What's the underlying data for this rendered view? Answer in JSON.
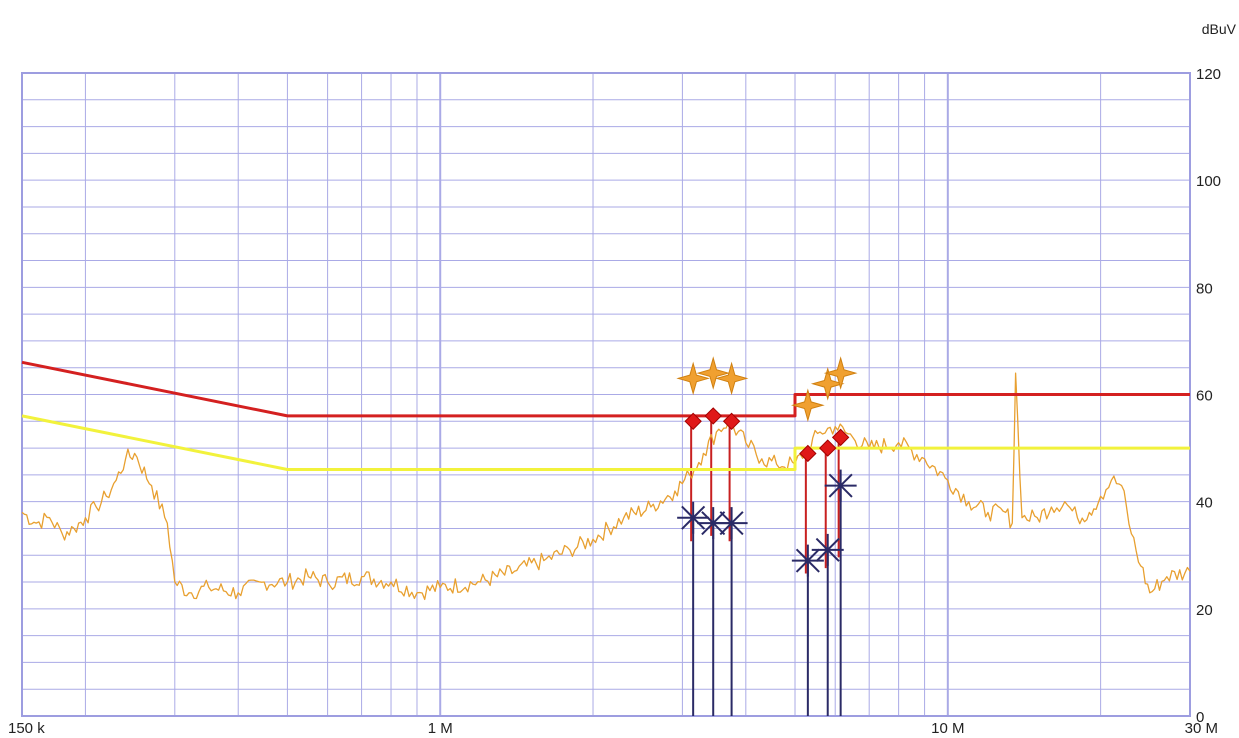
{
  "chart_data": {
    "type": "line",
    "title": "",
    "xlabel": "",
    "ylabel": "",
    "y_unit": "dBuV",
    "x_scale": "log",
    "xlim_hz": [
      150000,
      30000000
    ],
    "ylim": [
      0,
      120
    ],
    "grid": true,
    "x_tick_labels": [
      {
        "hz": 150000,
        "label": "150 k"
      },
      {
        "hz": 1000000,
        "label": "1 M"
      },
      {
        "hz": 10000000,
        "label": "10 M"
      },
      {
        "hz": 30000000,
        "label": "30 M"
      }
    ],
    "y_ticks": [
      0,
      20,
      40,
      60,
      80,
      100,
      120
    ],
    "series": [
      {
        "role": "quasi-peak limit",
        "color": "#d42020",
        "x": [
          150000,
          500000,
          500000,
          5000000,
          5000000,
          30000000
        ],
        "y": [
          66,
          56,
          56,
          56,
          60,
          60
        ]
      },
      {
        "role": "average limit",
        "color": "#f2f23c",
        "x": [
          150000,
          500000,
          500000,
          5000000,
          5000000,
          30000000
        ],
        "y": [
          56,
          46,
          46,
          46,
          50,
          50
        ]
      },
      {
        "role": "measured emission",
        "color": "#e8a030",
        "x": [
          150000,
          160000,
          170000,
          180000,
          190000,
          200000,
          210000,
          220000,
          230000,
          240000,
          250000,
          270000,
          290000,
          300000,
          320000,
          350000,
          400000,
          450000,
          500000,
          550000,
          600000,
          700000,
          800000,
          900000,
          1000000,
          1200000,
          1400000,
          1600000,
          1800000,
          2000000,
          2300000,
          2600000,
          2900000,
          3100000,
          3300000,
          3500000,
          3700000,
          4000000,
          4300000,
          4600000,
          5000000,
          5300000,
          5600000,
          6000000,
          6500000,
          7000000,
          8000000,
          9000000,
          10000000,
          11000000,
          12000000,
          13000000,
          13400000,
          13600000,
          14000000,
          15000000,
          16000000,
          17000000,
          18000000,
          19000000,
          20000000,
          21000000,
          22000000,
          23000000,
          24000000,
          25000000,
          27000000,
          30000000
        ],
        "y": [
          38,
          36,
          37,
          34,
          35,
          37,
          39,
          41,
          44,
          48,
          49,
          43,
          36,
          25,
          23,
          24,
          23,
          25,
          25,
          26,
          25,
          26,
          25,
          23,
          24,
          25,
          27,
          29,
          31,
          33,
          37,
          39,
          42,
          45,
          49,
          53,
          55,
          51,
          48,
          47,
          47,
          50,
          53,
          54,
          52,
          50,
          51,
          48,
          44,
          40,
          38,
          38,
          36,
          64,
          37,
          37,
          39,
          40,
          37,
          38,
          41,
          44,
          43,
          34,
          28,
          23,
          26,
          27
        ]
      }
    ],
    "markers": [
      {
        "type": "quasi-peak",
        "freq_hz": [
          3150000,
          3450000,
          3750000,
          5300000,
          5800000,
          6150000
        ],
        "level": [
          63,
          64,
          63,
          58,
          62,
          64
        ]
      },
      {
        "type": "quasi-peak delta",
        "freq_hz": [
          3150000,
          3450000,
          3750000,
          5300000,
          5800000,
          6150000
        ],
        "level": [
          55,
          56,
          55,
          49,
          50,
          52
        ]
      },
      {
        "type": "average",
        "freq_hz": [
          3150000,
          3450000,
          3750000,
          5300000,
          5800000,
          6150000
        ],
        "level": [
          37,
          36,
          36,
          29,
          31,
          43
        ]
      }
    ]
  }
}
